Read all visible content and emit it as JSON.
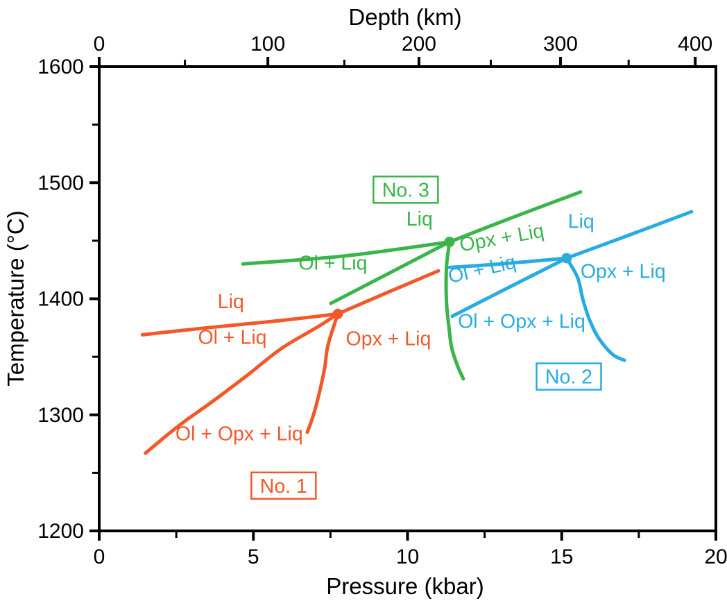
{
  "figure": {
    "top_axis_title": "Depth (km)",
    "x_axis_title": "Pressure (kbar)",
    "y_axis_title": "Temperature (°C)",
    "background_color": "#ffffff",
    "axis_color": "#000000"
  },
  "chart_data": {
    "type": "line",
    "title": "",
    "xlabel": "Pressure (kbar)",
    "ylabel": "Temperature (°C)",
    "x2label": "Depth (km)",
    "xlim": [
      0,
      20
    ],
    "ylim": [
      1200,
      1600
    ],
    "grid": false,
    "x_ticks_major": [
      0,
      5,
      10,
      15,
      20
    ],
    "x_ticks_minor": [
      2.5,
      7.5,
      12.5,
      17.5
    ],
    "y_ticks_major": [
      1600,
      1500,
      1400,
      1300,
      1200
    ],
    "y_ticks_minor": [
      1550,
      1450,
      1350,
      1250
    ],
    "depth_ticks_major": [
      {
        "km": "0",
        "kbar": 0.0
      },
      {
        "km": "100",
        "kbar": 5.47
      },
      {
        "km": "200",
        "kbar": 10.37
      },
      {
        "km": "300",
        "kbar": 14.96
      },
      {
        "km": "400",
        "kbar": 19.33
      }
    ],
    "depth_ticks_minor_kbar": [
      2.78,
      7.95,
      12.7,
      17.17
    ],
    "series": [
      {
        "name": "No. 1",
        "color": "#F1592A",
        "junction": {
          "P": 7.74,
          "T": 1387
        },
        "curves": [
          {
            "name": "ol-liquidus",
            "points": [
              [
                1.4,
                1369
              ],
              [
                3.5,
                1375
              ],
              [
                5.8,
                1381
              ],
              [
                7.74,
                1387
              ]
            ]
          },
          {
            "name": "opx-liquidus-extension",
            "points": [
              [
                7.74,
                1387
              ],
              [
                9.4,
                1406
              ],
              [
                11.0,
                1424
              ]
            ]
          },
          {
            "name": "ol-opx-cotectic",
            "points": [
              [
                1.5,
                1267
              ],
              [
                2.6,
                1291
              ],
              [
                3.7,
                1312
              ],
              [
                4.8,
                1334
              ],
              [
                5.9,
                1357
              ],
              [
                7.1,
                1376
              ],
              [
                7.74,
                1387
              ]
            ]
          },
          {
            "name": "opx-in-boundary",
            "points": [
              [
                7.74,
                1387
              ],
              [
                7.42,
                1360
              ],
              [
                7.31,
                1340
              ],
              [
                7.13,
                1318
              ],
              [
                6.95,
                1300
              ],
              [
                6.75,
                1285
              ]
            ]
          }
        ],
        "labels": [
          {
            "text": "Liq",
            "P": 4.27,
            "T": 1392,
            "rotate": 0
          },
          {
            "text": "Ol + Liq",
            "P": 4.32,
            "T": 1361,
            "rotate": 0
          },
          {
            "text": "Opx + Liq",
            "P": 9.38,
            "T": 1360,
            "rotate": 0
          },
          {
            "text": "Ol + Opx + Liq",
            "P": 4.54,
            "T": 1278,
            "rotate": 0
          }
        ],
        "box": {
          "text": "No. 1",
          "P": 5.98,
          "T": 1239
        }
      },
      {
        "name": "No. 3",
        "color": "#3AB54A",
        "junction": {
          "P": 11.36,
          "T": 1449
        },
        "curves": [
          {
            "name": "ol-liquidus",
            "points": [
              [
                4.66,
                1430
              ],
              [
                8.0,
                1437
              ],
              [
                11.36,
                1449
              ]
            ]
          },
          {
            "name": "opx-liquidus-extension",
            "points": [
              [
                11.36,
                1449
              ],
              [
                13.4,
                1470
              ],
              [
                15.61,
                1492
              ]
            ]
          },
          {
            "name": "ol-out-boundary",
            "points": [
              [
                7.51,
                1396
              ],
              [
                9.4,
                1422
              ],
              [
                11.36,
                1449
              ]
            ]
          },
          {
            "name": "opx-in-boundary",
            "points": [
              [
                11.36,
                1449
              ],
              [
                11.27,
                1430
              ],
              [
                11.25,
                1412
              ],
              [
                11.27,
                1394
              ],
              [
                11.34,
                1376
              ],
              [
                11.43,
                1358
              ],
              [
                11.61,
                1343
              ],
              [
                11.81,
                1331
              ]
            ]
          }
        ],
        "labels": [
          {
            "text": "Liq",
            "P": 10.39,
            "T": 1463,
            "rotate": 0
          },
          {
            "text": "Ol + Liq",
            "P": 7.58,
            "T": 1425,
            "rotate": 0
          },
          {
            "text": "Opx + Liq",
            "P": 13.09,
            "T": 1447,
            "rotate": -10
          }
        ],
        "box": {
          "text": "No. 3",
          "P": 9.94,
          "T": 1494
        }
      },
      {
        "name": "No. 2",
        "color": "#29ABE2",
        "junction": {
          "P": 15.16,
          "T": 1435
        },
        "curves": [
          {
            "name": "ol-liquidus",
            "points": [
              [
                11.36,
                1427
              ],
              [
                12.5,
                1429
              ],
              [
                13.9,
                1432
              ],
              [
                15.16,
                1435
              ]
            ]
          },
          {
            "name": "opx-liquidus-extension",
            "points": [
              [
                15.16,
                1435
              ],
              [
                17.2,
                1455
              ],
              [
                19.21,
                1475
              ]
            ]
          },
          {
            "name": "ol-out-boundary",
            "points": [
              [
                11.45,
                1385
              ],
              [
                13.3,
                1410
              ],
              [
                15.16,
                1435
              ]
            ]
          },
          {
            "name": "opx-in-boundary",
            "points": [
              [
                15.16,
                1435
              ],
              [
                15.52,
                1418
              ],
              [
                15.68,
                1400
              ],
              [
                15.9,
                1382
              ],
              [
                16.2,
                1366
              ],
              [
                16.65,
                1352
              ],
              [
                17.03,
                1347
              ]
            ]
          }
        ],
        "labels": [
          {
            "text": "Liq",
            "P": 15.63,
            "T": 1461,
            "rotate": 0
          },
          {
            "text": "Ol + Liq",
            "P": 12.46,
            "T": 1420,
            "rotate": -13
          },
          {
            "text": "Opx + Liq",
            "P": 16.99,
            "T": 1418,
            "rotate": 0
          },
          {
            "text": "Ol + Opx + Liq",
            "P": 13.7,
            "T": 1375,
            "rotate": 0
          }
        ],
        "box": {
          "text": "No. 2",
          "P": 15.23,
          "T": 1333
        }
      }
    ]
  }
}
